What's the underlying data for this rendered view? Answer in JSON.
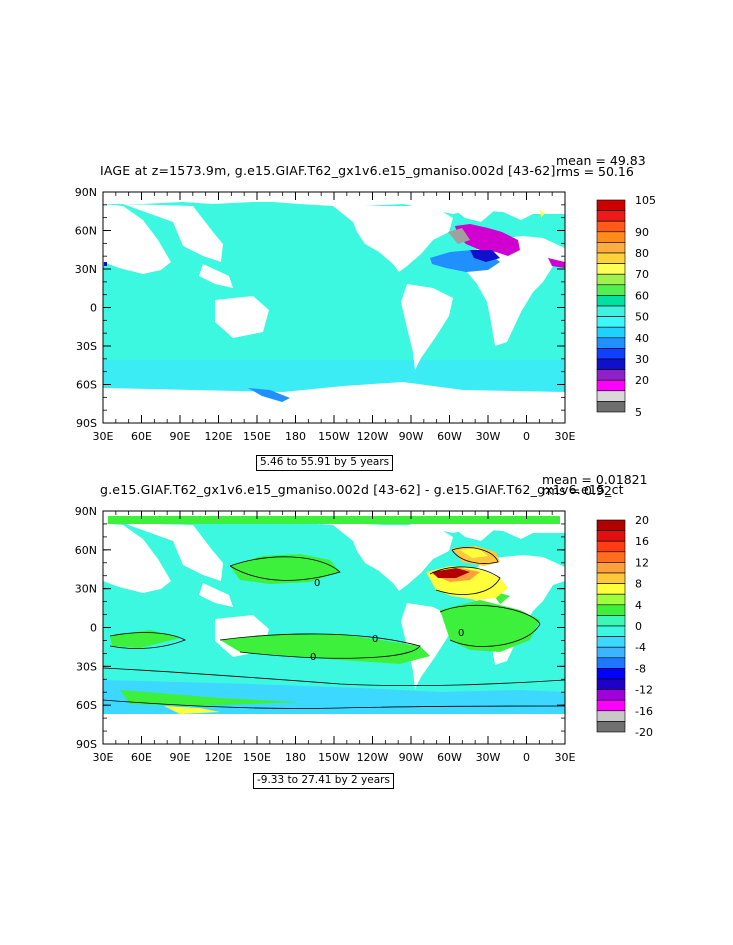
{
  "panel_top": {
    "title": "IAGE at z=1573.9m, g.e15.GIAF.T62_gx1v6.e15_gmaniso.002d [43-62]",
    "mean_label": "mean = 49.83",
    "rms_label": "rms = 50.16",
    "contour_info": "5.46 to 55.91 by 5 years",
    "colorbar": {
      "colors": [
        "#cc0000",
        "#ee1a1a",
        "#ff5a1a",
        "#ff8c1a",
        "#ffad40",
        "#ffd23c",
        "#ffff5a",
        "#a0f050",
        "#50f050",
        "#00e0a0",
        "#40f0e0",
        "#3cf8f8",
        "#20d0ff",
        "#2090ff",
        "#1040ff",
        "#1010cc",
        "#9020c8",
        "#ff00ff",
        "#d8d8d8",
        "#6e6e6e"
      ],
      "labels": [
        "105",
        "90",
        "80",
        "70",
        "60",
        "50",
        "40",
        "30",
        "20",
        "5"
      ]
    }
  },
  "panel_bottom": {
    "title": "g.e15.GIAF.T62_gx1v6.e15_gmaniso.002d [43-62] - g.e15.GIAF.T62_gx1v6.e15_ct",
    "mean_label": "mean = 0.01821",
    "rms_label": "rms = 0.92",
    "contour_info": "-9.33 to 27.41 by 2 years",
    "colorbar": {
      "colors": [
        "#b00000",
        "#e01010",
        "#ff3c14",
        "#ff6e1e",
        "#ffa03c",
        "#ffc83c",
        "#ffff3c",
        "#a0ff3c",
        "#3cf03c",
        "#3cf8b4",
        "#3cf8e0",
        "#3cd8ff",
        "#3cb4ff",
        "#1e78ff",
        "#0000ff",
        "#1e00c8",
        "#a000dc",
        "#ff00ff",
        "#c8c8c8",
        "#707070"
      ],
      "labels": [
        "20",
        "16",
        "12",
        "8",
        "4",
        "0",
        "-4",
        "-8",
        "-12",
        "-16",
        "-20"
      ]
    }
  },
  "axes": {
    "lat_labels": [
      "90N",
      "60N",
      "30N",
      "0",
      "30S",
      "60S",
      "90S"
    ],
    "lon_labels": [
      "30E",
      "60E",
      "90E",
      "120E",
      "150E",
      "180",
      "150W",
      "120W",
      "90W",
      "60W",
      "30W",
      "0",
      "30E"
    ]
  },
  "colors": {
    "ocean_top": "#3cf8e0",
    "ocean_bottom": "#3cf8e0",
    "positive": "#3cf03c"
  },
  "contour_labels": [
    "0",
    "0",
    "0",
    "0"
  ]
}
